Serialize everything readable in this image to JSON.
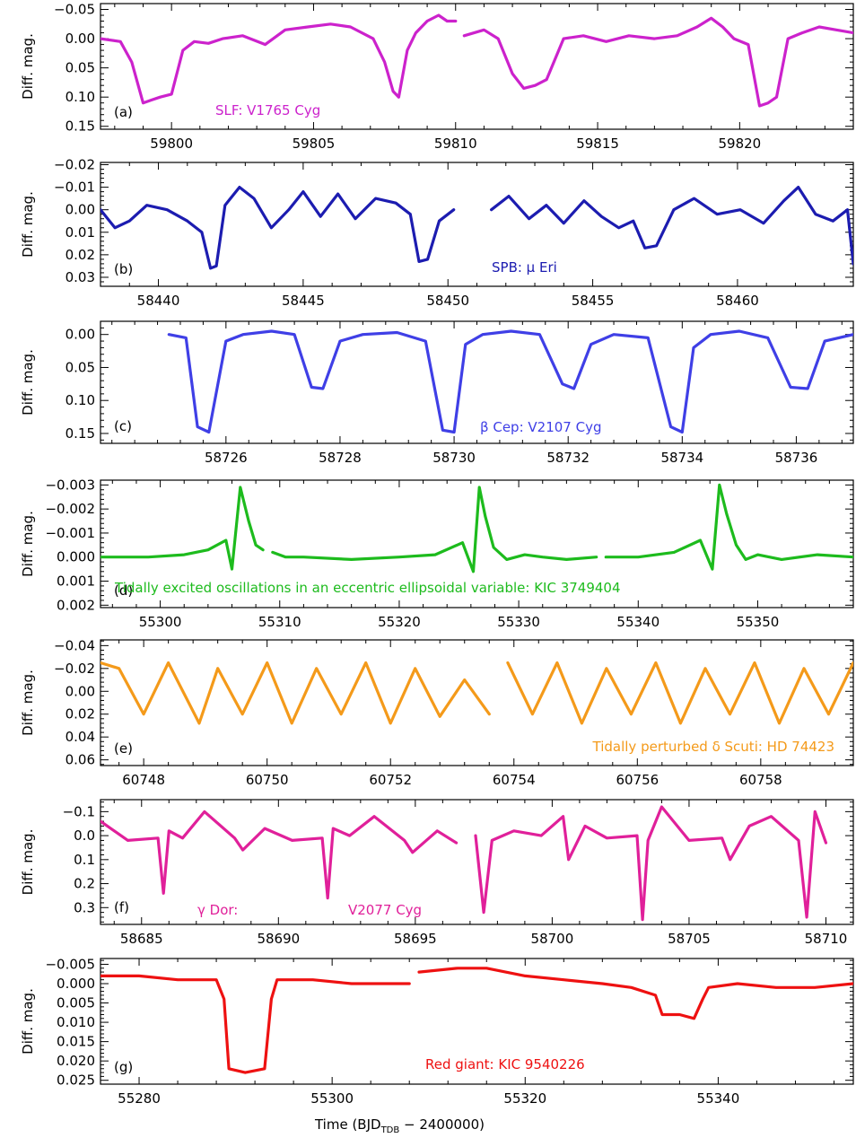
{
  "figure": {
    "xlabel_main": "Time  (BJD",
    "xlabel_sub": "TDB",
    "xlabel_tail": " − 2400000)"
  },
  "chart_data": [
    {
      "type": "line",
      "panel_label": "(a)",
      "annotation": "SLF:  V1765 Cyg",
      "color": "#cc22cc",
      "ylabel": "Diff. mag.",
      "xlim": [
        59797.5,
        59824
      ],
      "ylim": [
        -0.06,
        0.155
      ],
      "y_inverted": true,
      "xticks": [
        59800,
        59805,
        59810,
        59815,
        59820
      ],
      "yticks": [
        -0.05,
        0.0,
        0.05,
        0.1,
        0.15
      ],
      "ytick_labels": [
        "−0.05",
        "0.00",
        "0.05",
        "0.10",
        "0.15"
      ],
      "segments": [
        {
          "x": [
            59797.5,
            59798.2,
            59798.6,
            59799.0,
            59799.3,
            59799.6,
            59800.0,
            59800.4,
            59800.8,
            59801.3,
            59801.8,
            59802.5,
            59803.3,
            59804.0,
            59804.8,
            59805.6,
            59806.3,
            59807.1,
            59807.5,
            59807.8,
            59808.0,
            59808.3,
            59808.6,
            59809.0,
            59809.4,
            59809.7,
            59810.0
          ],
          "y": [
            0.0,
            0.005,
            0.04,
            0.11,
            0.105,
            0.1,
            0.095,
            0.02,
            0.005,
            0.008,
            0.0,
            -0.005,
            0.01,
            -0.015,
            -0.02,
            -0.025,
            -0.02,
            0.0,
            0.04,
            0.09,
            0.1,
            0.02,
            -0.01,
            -0.03,
            -0.04,
            -0.03,
            -0.03
          ]
        },
        {
          "x": [
            59810.3,
            59811.0,
            59811.5,
            59812.0,
            59812.4,
            59812.8,
            59813.2,
            59813.8,
            59814.5,
            59815.3,
            59816.1,
            59817.0,
            59817.8,
            59818.5,
            59819.0,
            59819.4,
            59819.8,
            59820.3,
            59820.7,
            59821.0,
            59821.3,
            59821.7,
            59822.2,
            59822.8,
            59823.4,
            59824.0
          ],
          "y": [
            -0.005,
            -0.015,
            0.0,
            0.06,
            0.085,
            0.08,
            0.07,
            0.0,
            -0.005,
            0.005,
            -0.005,
            0.0,
            -0.005,
            -0.02,
            -0.035,
            -0.02,
            0.0,
            0.01,
            0.115,
            0.11,
            0.1,
            0.0,
            -0.01,
            -0.02,
            -0.015,
            -0.01
          ]
        }
      ]
    },
    {
      "type": "line",
      "panel_label": "(b)",
      "annotation": "SPB:  μ Eri",
      "color": "#1c1cb0",
      "ylabel": "Diff. mag.",
      "xlim": [
        58438,
        58464
      ],
      "ylim": [
        -0.021,
        0.034
      ],
      "y_inverted": true,
      "xticks": [
        58440,
        58445,
        58450,
        58455,
        58460
      ],
      "yticks": [
        -0.02,
        -0.01,
        0.0,
        0.01,
        0.02,
        0.03
      ],
      "ytick_labels": [
        "−0.02",
        "−0.01",
        "0.00",
        "0.01",
        "0.02",
        "0.03"
      ],
      "segments": [
        {
          "x": [
            58438.0,
            58438.5,
            58439.0,
            58439.6,
            58440.3,
            58441.0,
            58441.5,
            58441.8,
            58442.0,
            58442.3,
            58442.8,
            58443.3,
            58443.9,
            58444.5,
            58445.0,
            58445.6,
            58446.2,
            58446.8,
            58447.5,
            58448.2,
            58448.7,
            58449.0,
            58449.3,
            58449.7,
            58450.2
          ],
          "y": [
            0.0,
            0.008,
            0.005,
            -0.002,
            0.0,
            0.005,
            0.01,
            0.026,
            0.025,
            -0.002,
            -0.01,
            -0.005,
            0.008,
            0.0,
            -0.008,
            0.003,
            -0.007,
            0.004,
            -0.005,
            -0.003,
            0.002,
            0.023,
            0.022,
            0.005,
            0.0
          ]
        },
        {
          "x": [
            58451.5,
            58452.1,
            58452.8,
            58453.4,
            58454.0,
            58454.7,
            58455.3,
            58455.9,
            58456.4,
            58456.8,
            58457.2,
            58457.8,
            58458.5,
            58459.3,
            58460.1,
            58460.9,
            58461.6,
            58462.1,
            58462.7,
            58463.3,
            58463.8,
            58464.0
          ],
          "y": [
            0.0,
            -0.006,
            0.004,
            -0.002,
            0.006,
            -0.004,
            0.003,
            0.008,
            0.005,
            0.017,
            0.016,
            0.0,
            -0.005,
            0.002,
            0.0,
            0.006,
            -0.004,
            -0.01,
            0.002,
            0.005,
            0.0,
            0.024
          ]
        }
      ]
    },
    {
      "type": "line",
      "panel_label": "(c)",
      "annotation": "β Cep:  V2107 Cyg",
      "color": "#3f3fe6",
      "ylabel": "Diff. mag.",
      "xlim": [
        58723.8,
        58737
      ],
      "ylim": [
        -0.02,
        0.165
      ],
      "y_inverted": true,
      "xticks": [
        58726,
        58728,
        58730,
        58732,
        58734,
        58736
      ],
      "yticks": [
        0.0,
        0.05,
        0.1,
        0.15
      ],
      "ytick_labels": [
        "0.00",
        "0.05",
        "0.10",
        "0.15"
      ],
      "segments": [
        {
          "x": [
            58725.0,
            58725.3,
            58725.5,
            58725.7,
            58726.0,
            58726.3,
            58726.8,
            58727.2,
            58727.5,
            58727.7,
            58728.0,
            58728.4,
            58729.0,
            58729.5,
            58729.8,
            58730.0,
            58730.2,
            58730.5,
            58731.0,
            58731.5,
            58731.9,
            58732.1,
            58732.4,
            58732.8,
            58733.4,
            58733.8,
            58734.0,
            58734.2,
            58734.5,
            58735.0,
            58735.5,
            58735.9,
            58736.2,
            58736.5,
            58737.0
          ],
          "y": [
            0.0,
            0.005,
            0.14,
            0.148,
            0.01,
            0.0,
            -0.005,
            0.0,
            0.08,
            0.082,
            0.01,
            0.0,
            -0.003,
            0.01,
            0.145,
            0.148,
            0.015,
            0.0,
            -0.005,
            0.0,
            0.075,
            0.082,
            0.015,
            0.0,
            0.005,
            0.14,
            0.148,
            0.02,
            0.0,
            -0.005,
            0.005,
            0.08,
            0.082,
            0.01,
            0.0
          ]
        }
      ]
    },
    {
      "type": "line",
      "panel_label": "(d)",
      "annotation": "Tidally excited oscillations in an eccentric ellipsoidal variable:  KIC 3749404",
      "color": "#1dbb1d",
      "ylabel": "Diff. mag.",
      "xlim": [
        55295,
        55358
      ],
      "ylim": [
        -0.0032,
        0.0021
      ],
      "y_inverted": true,
      "xticks": [
        55300,
        55310,
        55320,
        55330,
        55340,
        55350
      ],
      "yticks": [
        -0.003,
        -0.002,
        -0.001,
        0.0,
        0.001,
        0.002
      ],
      "ytick_labels": [
        "−0.003",
        "−0.002",
        "−0.001",
        "0.000",
        "0.001",
        "0.002"
      ],
      "segments": [
        {
          "x": [
            55295,
            55299,
            55302,
            55304,
            55305.5,
            55306.0,
            55306.7,
            55307.4,
            55308.0,
            55308.6
          ],
          "y": [
            0.0,
            0.0,
            -0.0001,
            -0.0003,
            -0.0007,
            0.0005,
            -0.0029,
            -0.0015,
            -0.0005,
            -0.0003
          ]
        },
        {
          "x": [
            55309.4,
            55310.5,
            55312,
            55316,
            55320,
            55323,
            55325.3,
            55326.2,
            55326.7,
            55327.2,
            55327.9,
            55329,
            55330.5,
            55332,
            55334,
            55336.5
          ],
          "y": [
            -0.0002,
            0.0,
            0.0,
            0.0001,
            0.0,
            -0.0001,
            -0.0006,
            0.0006,
            -0.0029,
            -0.0017,
            -0.0004,
            0.0001,
            -0.0001,
            0.0,
            0.0001,
            0.0
          ]
        },
        {
          "x": [
            55337.3,
            55340,
            55343,
            55345.2,
            55346.2,
            55346.8,
            55347.4,
            55348.2,
            55349,
            55350,
            55352,
            55355,
            55358
          ],
          "y": [
            0.0,
            0.0,
            -0.0002,
            -0.0007,
            0.0005,
            -0.003,
            -0.0018,
            -0.0005,
            0.0001,
            -0.0001,
            0.0001,
            -0.0001,
            0.0
          ]
        }
      ]
    },
    {
      "type": "line",
      "panel_label": "(e)",
      "annotation": "Tidally perturbed δ Scuti:  HD 74423",
      "color": "#f49a1a",
      "ylabel": "Diff. mag.",
      "xlim": [
        60747.3,
        60759.5
      ],
      "ylim": [
        -0.045,
        0.065
      ],
      "y_inverted": true,
      "xticks": [
        60748,
        60750,
        60752,
        60754,
        60756,
        60758
      ],
      "yticks": [
        -0.04,
        -0.02,
        0.0,
        0.02,
        0.04,
        0.06
      ],
      "ytick_labels": [
        "−0.04",
        "−0.02",
        "0.00",
        "0.02",
        "0.04",
        "0.06"
      ],
      "segments": [
        {
          "x": [
            60747.3,
            60747.6,
            60748.0,
            60748.4,
            60748.9,
            60749.2,
            60749.6,
            60750.0,
            60750.4,
            60750.8,
            60751.2,
            60751.6,
            60752.0,
            60752.4,
            60752.8,
            60753.2,
            60753.6
          ],
          "y": [
            -0.025,
            -0.02,
            0.02,
            -0.025,
            0.028,
            -0.02,
            0.02,
            -0.025,
            0.028,
            -0.02,
            0.02,
            -0.025,
            0.028,
            -0.02,
            0.022,
            -0.01,
            0.02
          ]
        },
        {
          "x": [
            60753.9,
            60754.3,
            60754.7,
            60755.1,
            60755.5,
            60755.9,
            60756.3,
            60756.7,
            60757.1,
            60757.5,
            60757.9,
            60758.3,
            60758.7,
            60759.1,
            60759.5
          ],
          "y": [
            -0.025,
            0.02,
            -0.025,
            0.028,
            -0.02,
            0.02,
            -0.025,
            0.028,
            -0.02,
            0.02,
            -0.025,
            0.028,
            -0.02,
            0.02,
            -0.025
          ]
        }
      ]
    },
    {
      "type": "line",
      "panel_label": "(f)",
      "annotation": "γ Dor:",
      "annotation2": "V2077 Cyg",
      "color": "#e0209a",
      "ylabel": "Diff. mag.",
      "xlim": [
        58683.5,
        58711
      ],
      "ylim": [
        -0.15,
        0.37
      ],
      "y_inverted": true,
      "xticks": [
        58685,
        58690,
        58695,
        58700,
        58705,
        58710
      ],
      "yticks": [
        -0.1,
        0.0,
        0.1,
        0.2,
        0.3
      ],
      "ytick_labels": [
        "−0.1",
        "0.0",
        "0.1",
        "0.2",
        "0.3"
      ],
      "segments": [
        {
          "x": [
            58683.5,
            58684.5,
            58685.6,
            58685.8,
            58686.0,
            58686.5,
            58687.3,
            58688.4,
            58688.7,
            58689.5,
            58690.5,
            58691.6,
            58691.8,
            58692.0,
            58692.6,
            58693.5,
            58694.6,
            58694.9,
            58695.8,
            58696.5
          ],
          "y": [
            -0.06,
            0.02,
            0.01,
            0.24,
            -0.02,
            0.01,
            -0.1,
            0.01,
            0.06,
            -0.03,
            0.02,
            0.01,
            0.26,
            -0.03,
            0.0,
            -0.08,
            0.02,
            0.07,
            -0.02,
            0.03
          ]
        },
        {
          "x": [
            58697.2,
            58697.5,
            58697.8,
            58698.6,
            58699.6,
            58700.4,
            58700.6,
            58701.2,
            58702.0,
            58703.1,
            58703.3,
            58703.5,
            58704.0,
            58705.0,
            58706.2,
            58706.5,
            58707.2,
            58708.0,
            58709.0,
            58709.3,
            58709.6,
            58710.0
          ],
          "y": [
            0.0,
            0.32,
            0.02,
            -0.02,
            0.0,
            -0.08,
            0.1,
            -0.04,
            0.01,
            0.0,
            0.35,
            0.02,
            -0.12,
            0.02,
            0.01,
            0.1,
            -0.04,
            -0.08,
            0.02,
            0.34,
            -0.1,
            0.03
          ]
        }
      ]
    },
    {
      "type": "line",
      "panel_label": "(g)",
      "annotation": "Red giant:  KIC 9540226",
      "color": "#ee1111",
      "ylabel": "Diff. mag.",
      "xlim": [
        55276,
        55354
      ],
      "ylim": [
        -0.0065,
        0.026
      ],
      "y_inverted": true,
      "xticks": [
        55280,
        55300,
        55320,
        55340
      ],
      "yticks": [
        -0.005,
        0.0,
        0.005,
        0.01,
        0.015,
        0.02,
        0.025
      ],
      "ytick_labels": [
        "−0.005",
        "0.000",
        "0.005",
        "0.010",
        "0.015",
        "0.020",
        "0.025"
      ],
      "segments": [
        {
          "x": [
            55276,
            55280,
            55284,
            55288,
            55288.8,
            55289.3,
            55291,
            55293,
            55293.7,
            55294.3,
            55298,
            55302,
            55306,
            55308
          ],
          "y": [
            -0.002,
            -0.002,
            -0.001,
            -0.001,
            0.004,
            0.022,
            0.023,
            0.022,
            0.004,
            -0.001,
            -0.001,
            0.0,
            0.0,
            0.0
          ]
        },
        {
          "x": [
            55309,
            55313,
            55316,
            55320,
            55324,
            55328,
            55331,
            55333.5,
            55334.2,
            55336,
            55337.5,
            55338.4,
            55339,
            55342,
            55346,
            55350,
            55354
          ],
          "y": [
            -0.003,
            -0.004,
            -0.004,
            -0.002,
            -0.001,
            0.0,
            0.001,
            0.003,
            0.008,
            0.008,
            0.009,
            0.004,
            0.001,
            0.0,
            0.001,
            0.001,
            0.0
          ]
        }
      ]
    }
  ]
}
